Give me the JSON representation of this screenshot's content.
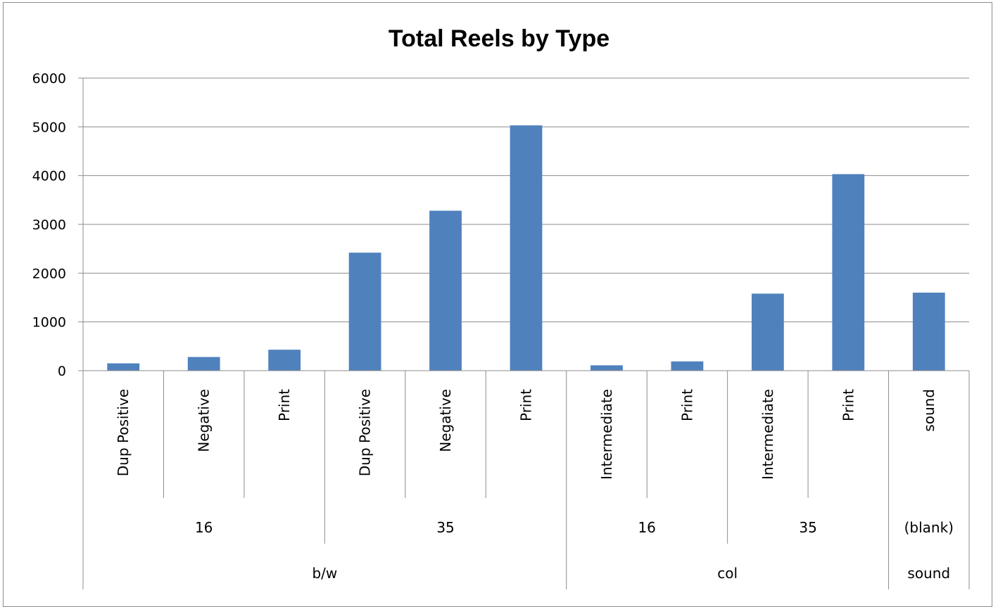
{
  "chart_data": {
    "type": "bar",
    "title": "Total Reels by Type",
    "xlabel": "",
    "ylabel": "",
    "ylim": [
      0,
      6000
    ],
    "yticks": [
      0,
      1000,
      2000,
      3000,
      4000,
      5000,
      6000
    ],
    "grid": true,
    "legend": "none",
    "bar_color": "#4f81bd",
    "categories": [
      "Dup Positive",
      "Negative",
      "Print",
      "Dup Positive",
      "Negative",
      "Print",
      "Intermediate",
      "Print",
      "Intermediate",
      "Print",
      "sound"
    ],
    "values": [
      150,
      280,
      430,
      2420,
      3280,
      5030,
      110,
      190,
      1580,
      4030,
      1600
    ],
    "group_level_2": [
      {
        "label": "16",
        "count": 3
      },
      {
        "label": "35",
        "count": 3
      },
      {
        "label": "16",
        "count": 2
      },
      {
        "label": "35",
        "count": 2
      },
      {
        "label": "(blank)",
        "count": 1
      }
    ],
    "group_level_3": [
      {
        "label": "b/w",
        "count": 6
      },
      {
        "label": "col",
        "count": 4
      },
      {
        "label": "sound",
        "count": 1
      }
    ]
  }
}
